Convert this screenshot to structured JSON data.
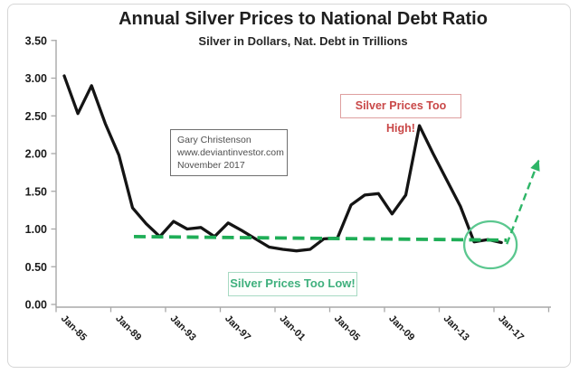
{
  "chart_data": {
    "type": "line",
    "title": "Annual Silver Prices to National Debt Ratio",
    "subtitle": "Silver in Dollars, Nat. Debt in Trillions",
    "x": [
      1985,
      1986,
      1987,
      1988,
      1989,
      1990,
      1991,
      1992,
      1993,
      1994,
      1995,
      1996,
      1997,
      1998,
      1999,
      2000,
      2001,
      2002,
      2003,
      2004,
      2005,
      2006,
      2007,
      2008,
      2009,
      2010,
      2011,
      2012,
      2013,
      2014,
      2015,
      2016,
      2017
    ],
    "values": [
      3.03,
      2.53,
      2.9,
      2.4,
      1.98,
      1.28,
      1.07,
      0.9,
      1.1,
      1.0,
      1.02,
      0.9,
      1.08,
      0.98,
      0.87,
      0.76,
      0.73,
      0.71,
      0.73,
      0.87,
      0.88,
      1.32,
      1.45,
      1.47,
      1.2,
      1.45,
      2.37,
      2.0,
      1.65,
      1.3,
      0.83,
      0.86,
      0.82
    ],
    "x_tick_labels": [
      "Jan-85",
      "Jan-89",
      "Jan-93",
      "Jan-97",
      "Jan-01",
      "Jan-05",
      "Jan-09",
      "Jan-13",
      "Jan-17"
    ],
    "y_tick_labels": [
      "0.00",
      "0.50",
      "1.00",
      "1.50",
      "2.00",
      "2.50",
      "3.00",
      "3.50"
    ],
    "ylim": [
      0,
      3.5
    ],
    "grid": false,
    "legend": "none",
    "line_color": "#141414",
    "axis_color": "#a8a8a8",
    "annotations": {
      "support_line": {
        "value": 0.9,
        "start_year": 1990.1,
        "end_year": 2017.4,
        "color": "#1fae57",
        "style": "dashed"
      },
      "ellipse": {
        "center_year": 2016.2,
        "center_value": 0.79,
        "color": "#5bc78f"
      },
      "arrow": {
        "from_year": 2017.4,
        "from_value": 0.8,
        "to_year": 2019.75,
        "to_value": 1.92,
        "color": "#2eb567",
        "style": "dashed"
      },
      "high_label": {
        "text": "Silver Prices Too High!",
        "color": "#c94848"
      },
      "low_label": {
        "text": "Silver Prices Too Low!",
        "color": "#3fb07d"
      },
      "credit_box": {
        "lines": [
          "Gary Christenson",
          "www.deviantinvestor.com",
          "November 2017"
        ]
      }
    }
  }
}
